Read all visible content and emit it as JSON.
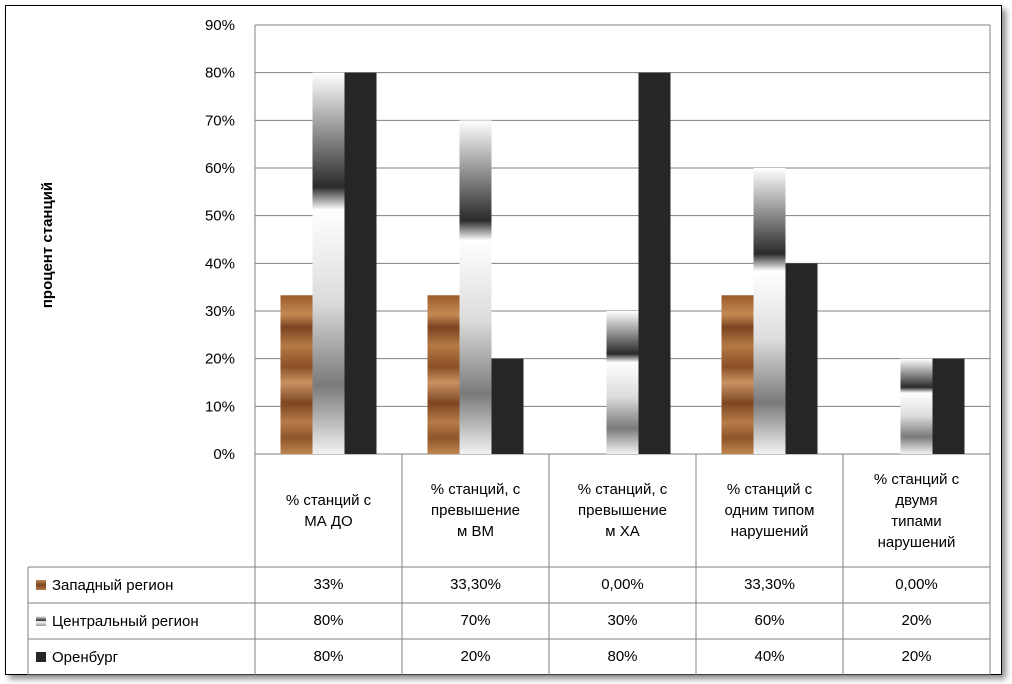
{
  "chart_data": {
    "type": "bar",
    "ylabel": "процент станций",
    "ylim": [
      0,
      90
    ],
    "yticks": [
      "0%",
      "10%",
      "20%",
      "30%",
      "40%",
      "50%",
      "60%",
      "70%",
      "80%",
      "90%"
    ],
    "grid": true,
    "categories": [
      [
        "% станций с",
        "МА  ДО"
      ],
      [
        "% станций, с",
        "превышение",
        "м ВМ"
      ],
      [
        "% станций, с",
        "превышение",
        "м ХА"
      ],
      [
        "% станций с",
        "одним типом",
        "нарушений"
      ],
      [
        "% станций с",
        "двумя",
        "типами",
        "нарушений"
      ]
    ],
    "series": [
      {
        "name": "Западный регион",
        "values": [
          33.3,
          33.3,
          0,
          33.3,
          0
        ],
        "labels": [
          "33%",
          "33,30%",
          "0,00%",
          "33,30%",
          "0,00%"
        ],
        "color": "#a0602f"
      },
      {
        "name": "Центральный регион",
        "values": [
          80,
          70,
          30,
          60,
          20
        ],
        "labels": [
          "80%",
          "70%",
          "30%",
          "60%",
          "20%"
        ],
        "color": "#888888"
      },
      {
        "name": "Оренбург",
        "values": [
          80,
          20,
          80,
          40,
          20
        ],
        "labels": [
          "80%",
          "20%",
          "80%",
          "40%",
          "20%"
        ],
        "color": "#262626"
      }
    ],
    "legend": "data-table"
  }
}
